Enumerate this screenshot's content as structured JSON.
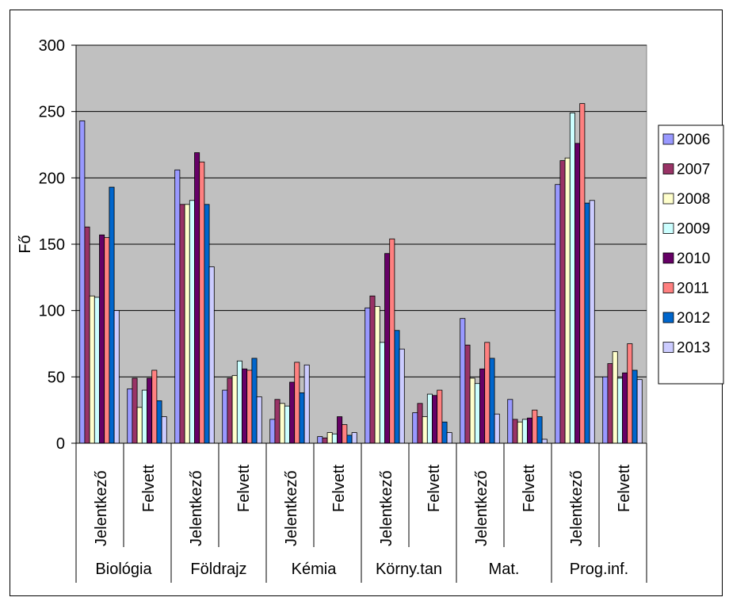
{
  "chart_data": {
    "type": "bar",
    "ylabel": "Fő",
    "ylim": [
      0,
      300
    ],
    "yticks": [
      0,
      50,
      100,
      150,
      200,
      250,
      300
    ],
    "grid": true,
    "plot_background": "#C0C0C0",
    "legend_position": "right",
    "groups": [
      "Biológia",
      "Földrajz",
      "Kémia",
      "Körny.tan",
      "Mat.",
      "Prog.inf."
    ],
    "subcategories": [
      "Jelentkező",
      "Felvett"
    ],
    "categories": [
      "Biológia Jelentkező",
      "Biológia Felvett",
      "Földrajz Jelentkező",
      "Földrajz Felvett",
      "Kémia Jelentkező",
      "Kémia Felvett",
      "Körny.tan Jelentkező",
      "Körny.tan Felvett",
      "Mat. Jelentkező",
      "Mat. Felvett",
      "Prog.inf. Jelentkező",
      "Prog.inf. Felvett"
    ],
    "series": [
      {
        "name": "2006",
        "color": "#9999FF",
        "values": [
          243,
          41,
          206,
          40,
          18,
          5,
          102,
          23,
          94,
          33,
          195,
          50
        ]
      },
      {
        "name": "2007",
        "color": "#993366",
        "values": [
          163,
          49,
          180,
          49,
          33,
          4,
          111,
          30,
          74,
          18,
          213,
          60
        ]
      },
      {
        "name": "2008",
        "color": "#FFFFCC",
        "values": [
          111,
          27,
          180,
          51,
          30,
          8,
          103,
          20,
          49,
          16,
          215,
          69
        ]
      },
      {
        "name": "2009",
        "color": "#CCFFFF",
        "values": [
          110,
          40,
          183,
          62,
          28,
          7,
          76,
          37,
          45,
          18,
          249,
          49
        ]
      },
      {
        "name": "2010",
        "color": "#660066",
        "values": [
          157,
          49,
          219,
          56,
          46,
          20,
          143,
          36,
          56,
          19,
          226,
          53
        ]
      },
      {
        "name": "2011",
        "color": "#FF8080",
        "values": [
          155,
          55,
          212,
          55,
          61,
          14,
          154,
          40,
          76,
          25,
          256,
          75
        ]
      },
      {
        "name": "2012",
        "color": "#0066CC",
        "values": [
          193,
          32,
          180,
          64,
          38,
          6,
          85,
          16,
          64,
          20,
          181,
          55
        ]
      },
      {
        "name": "2013",
        "color": "#CCCCFF",
        "values": [
          100,
          20,
          133,
          35,
          59,
          8,
          71,
          8,
          22,
          3,
          183,
          48
        ]
      }
    ]
  }
}
